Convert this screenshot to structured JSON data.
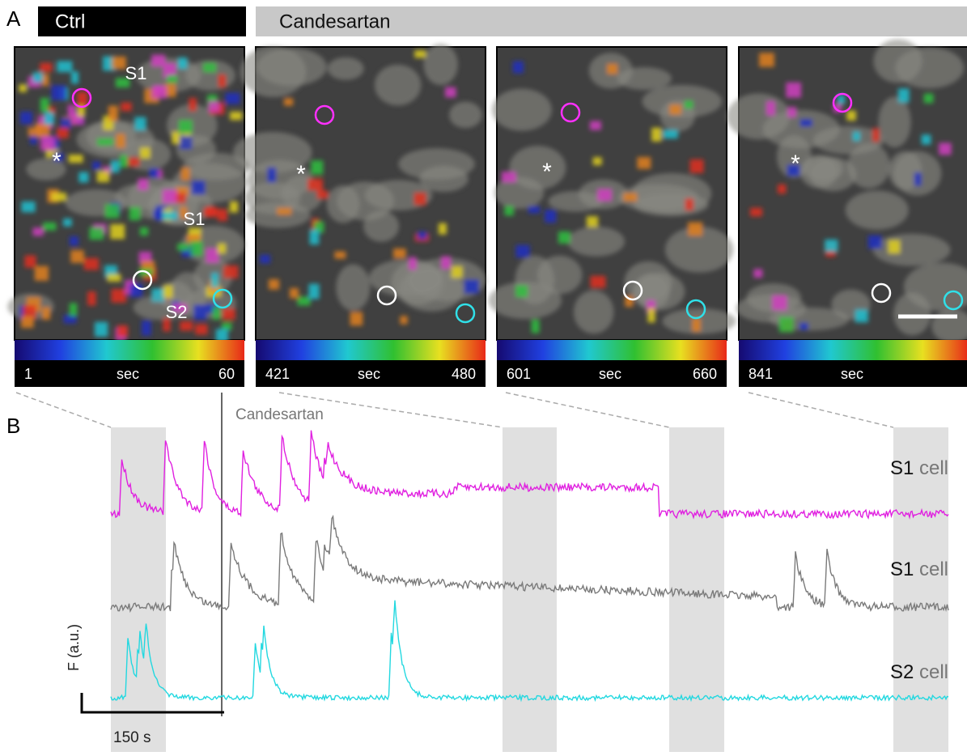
{
  "panel_a": {
    "label": "A",
    "ctrl_label": "Ctrl",
    "treatment_label": "Candesartan",
    "asterisk": "*",
    "images": [
      {
        "annotations": [
          "S1",
          "S1",
          "S2"
        ],
        "colorbar": {
          "start": "1",
          "unit": "sec",
          "end": "60"
        }
      },
      {
        "annotations": [],
        "colorbar": {
          "start": "421",
          "unit": "sec",
          "end": "480"
        }
      },
      {
        "annotations": [],
        "colorbar": {
          "start": "601",
          "unit": "sec",
          "end": "660"
        }
      },
      {
        "annotations": [],
        "colorbar": {
          "start": "841",
          "unit": "sec"
        }
      }
    ]
  },
  "panel_b": {
    "label": "B",
    "drug_label": "Candesartan",
    "y_axis_label": "F (a.u.)",
    "scale_bar_label": "150 s",
    "traces": [
      {
        "name": "S1",
        "word": "cell",
        "color": "#e020e0"
      },
      {
        "name": "S1",
        "word": "cell",
        "color": "#7a7a7a"
      },
      {
        "name": "S2",
        "word": "cell",
        "color": "#22d8e0"
      }
    ]
  }
}
